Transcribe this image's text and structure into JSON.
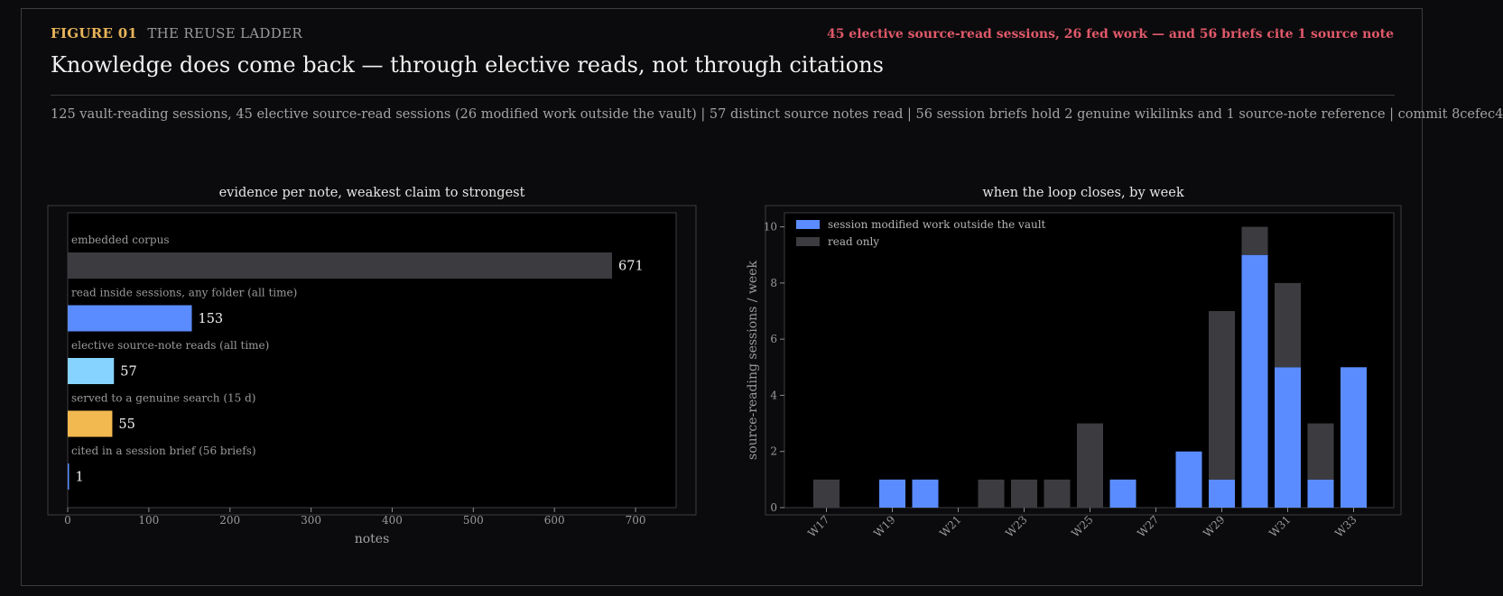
{
  "header": {
    "figure_label": "FIGURE 01",
    "figure_name": "THE REUSE LADDER",
    "callout": "45 elective source-read sessions, 26 fed work — and 56 briefs cite 1 source note",
    "title": "Knowledge does come back — through elective reads, not through citations",
    "stats": "125 vault-reading sessions, 45 elective source-read sessions (26 modified work outside the vault)  |  57 distinct source notes read  |  56 session briefs hold 2 genuine wikilinks and 1 source-note reference  |  commit 8cefec4"
  },
  "colors": {
    "background": "#0b0b0d",
    "accent_gold": "#e8b45a",
    "accent_red": "#e0596a",
    "blue": "#5b8cff",
    "light_blue": "#86d3ff",
    "gold": "#f2b950",
    "gray": "#3c3c40"
  },
  "chart_data": [
    {
      "type": "bar",
      "orientation": "horizontal",
      "title": "evidence per note, weakest claim to strongest",
      "xlabel": "notes",
      "ylabel": "",
      "xlim": [
        0,
        750
      ],
      "xticks": [
        0,
        100,
        200,
        300,
        400,
        500,
        600,
        700
      ],
      "categories": [
        "embedded corpus",
        "read inside sessions, any folder (all time)",
        "elective source-note reads (all time)",
        "served to a genuine search (15 d)",
        "cited in a session brief (56 briefs)"
      ],
      "values": [
        671,
        153,
        57,
        55,
        1
      ],
      "bar_colors": [
        "#3c3c40",
        "#5b8cff",
        "#86d3ff",
        "#f2b950",
        "#5b8cff"
      ],
      "data_labels": [
        "671",
        "153",
        "57",
        "55",
        "1"
      ],
      "grid": false
    },
    {
      "type": "bar",
      "stacked": true,
      "title": "when the loop closes, by week",
      "xlabel": "",
      "ylabel": "source-reading sessions / week",
      "ylim": [
        0,
        10.5
      ],
      "yticks": [
        0,
        2,
        4,
        6,
        8,
        10
      ],
      "categories": [
        "W17",
        "W18",
        "W19",
        "W20",
        "W21",
        "W22",
        "W23",
        "W24",
        "W25",
        "W26",
        "W27",
        "W28",
        "W29",
        "W30",
        "W31",
        "W32",
        "W33"
      ],
      "xtick_labels": [
        "W17",
        "W19",
        "W21",
        "W23",
        "W25",
        "W27",
        "W29",
        "W31",
        "W33"
      ],
      "series": [
        {
          "name": "session modified work outside the vault",
          "color": "#5b8cff",
          "values": [
            0,
            0,
            1,
            1,
            0,
            0,
            0,
            0,
            0,
            1,
            0,
            2,
            1,
            9,
            5,
            1,
            5
          ]
        },
        {
          "name": "read only",
          "color": "#3c3c40",
          "values": [
            1,
            0,
            0,
            0,
            0,
            1,
            1,
            1,
            3,
            0,
            0,
            0,
            6,
            1,
            3,
            2,
            0
          ]
        }
      ],
      "legend_position": "top-left",
      "grid": false
    }
  ]
}
